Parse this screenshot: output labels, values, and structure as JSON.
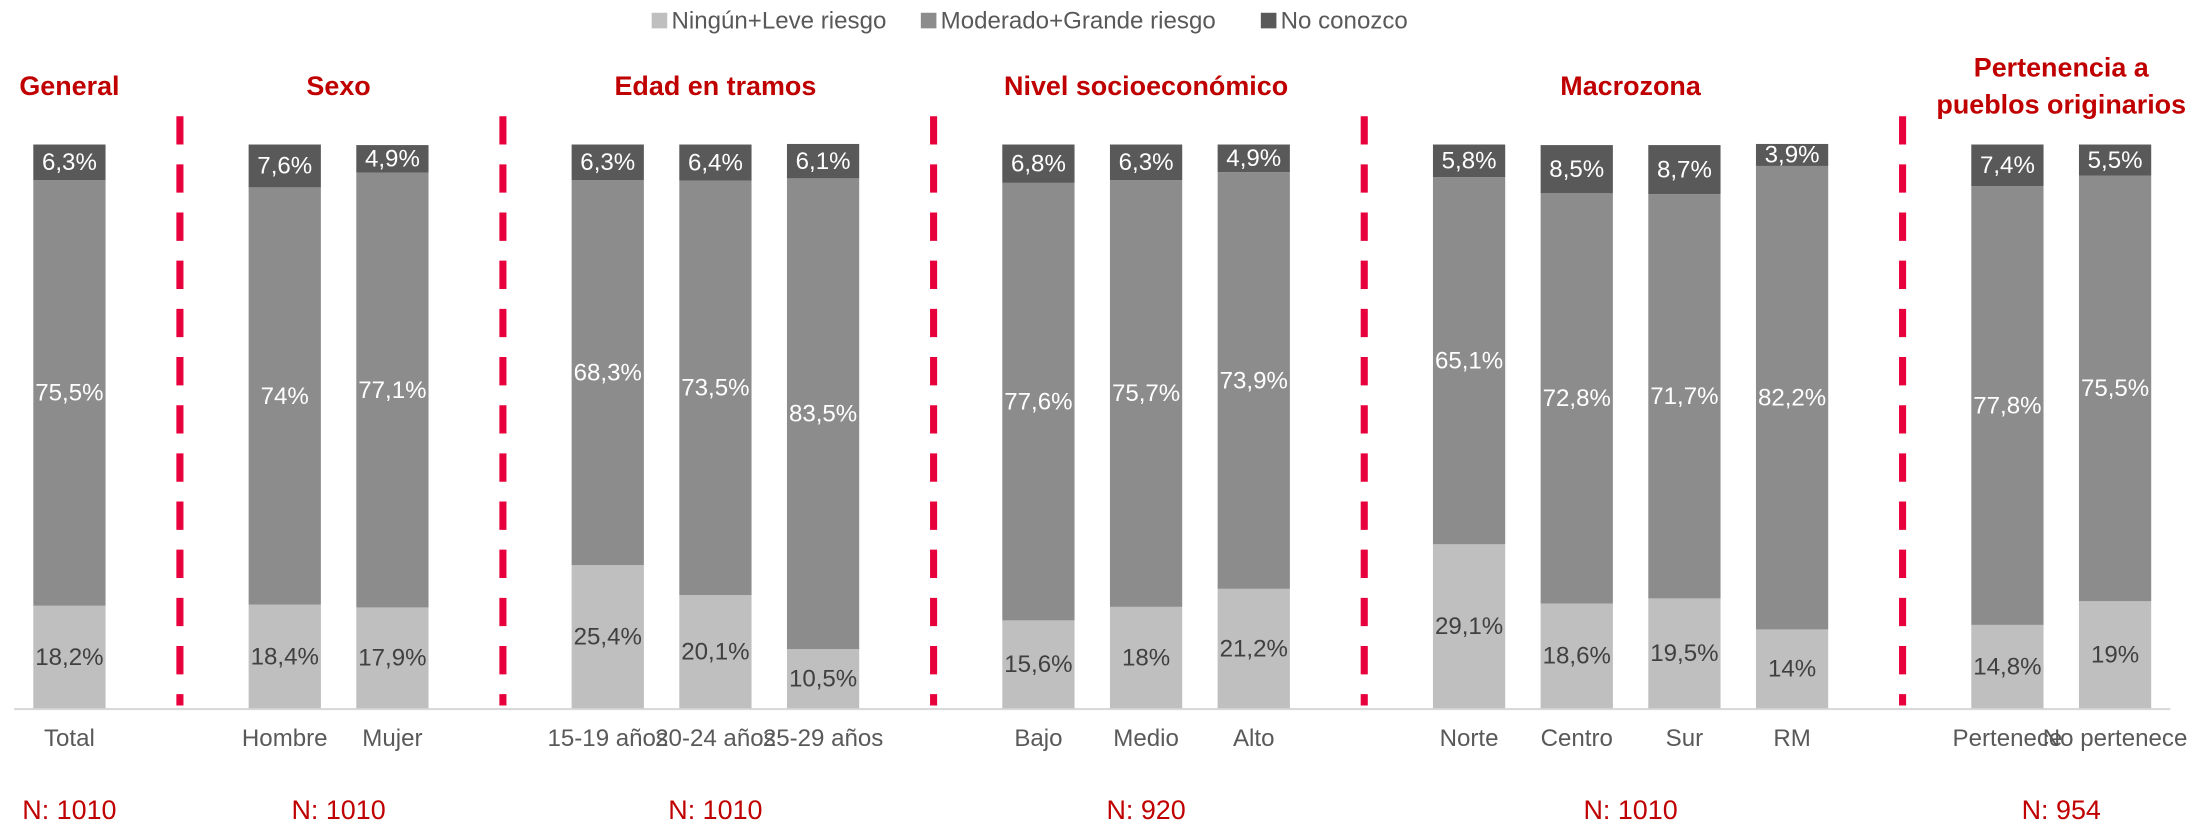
{
  "chart_data": {
    "type": "stacked_bar",
    "categories": [
      "Total",
      null,
      "Hombre",
      "Mujer",
      null,
      "15-19 años",
      "20-24 años",
      "25-29 años",
      null,
      "Bajo",
      "Medio",
      "Alto",
      null,
      "Norte",
      "Centro",
      "Sur",
      "RM",
      null,
      "Pertenece",
      "No pertenece"
    ],
    "groups": [
      {
        "title": "General",
        "n": "N: 1010"
      },
      {
        "title": "Sexo",
        "n": "N: 1010"
      },
      {
        "title": "Edad en tramos",
        "n": "N: 1010"
      },
      {
        "title": "Nivel socioeconómico",
        "n": "N: 920"
      },
      {
        "title": "Macrozona",
        "n": "N: 1010"
      },
      {
        "title": "Pertenencia a\npueblos originarios",
        "n": "N: 954"
      }
    ],
    "series": [
      {
        "name": "Ningún+Leve riesgo",
        "color": "#bfbfbf",
        "label_color": "#404040",
        "values": [
          18.2,
          null,
          18.4,
          17.9,
          null,
          25.4,
          20.1,
          10.5,
          null,
          15.6,
          18,
          21.2,
          null,
          29.1,
          18.6,
          19.5,
          14,
          null,
          14.8,
          19
        ],
        "value_labels": [
          "18,2%",
          null,
          "18,4%",
          "17,9%",
          null,
          "25,4%",
          "20,1%",
          "10,5%",
          null,
          "15,6%",
          "18%",
          "21,2%",
          null,
          "29,1%",
          "18,6%",
          "19,5%",
          "14%",
          null,
          "14,8%",
          "19%"
        ]
      },
      {
        "name": "Moderado+Grande riesgo",
        "color": "#8c8c8c",
        "label_color": "#ffffff",
        "values": [
          75.5,
          null,
          74,
          77.1,
          null,
          68.3,
          73.5,
          83.5,
          null,
          77.6,
          75.7,
          73.9,
          null,
          65.1,
          72.8,
          71.7,
          82.2,
          null,
          77.8,
          75.5
        ],
        "value_labels": [
          "75,5%",
          null,
          "74%",
          "77,1%",
          null,
          "68,3%",
          "73,5%",
          "83,5%",
          null,
          "77,6%",
          "75,7%",
          "73,9%",
          null,
          "65,1%",
          "72,8%",
          "71,7%",
          "82,2%",
          null,
          "77,8%",
          "75,5%"
        ]
      },
      {
        "name": "No conozco",
        "color": "#595959",
        "label_color": "#ffffff",
        "values": [
          6.3,
          null,
          7.6,
          4.9,
          null,
          6.3,
          6.4,
          6.1,
          null,
          6.8,
          6.3,
          4.9,
          null,
          5.8,
          8.5,
          8.7,
          3.9,
          null,
          7.4,
          5.5
        ],
        "value_labels": [
          "6,3%",
          null,
          "7,6%",
          "4,9%",
          null,
          "6,3%",
          "6,4%",
          "6,1%",
          null,
          "6,8%",
          "6,3%",
          "4,9%",
          null,
          "5,8%",
          "8,5%",
          "8,7%",
          "3,9%",
          null,
          "7,4%",
          "5,5%"
        ]
      }
    ],
    "ylim": [
      0,
      100
    ],
    "legend": "top",
    "group_title_color": "#c00000",
    "separator_color": "#e8003d"
  }
}
